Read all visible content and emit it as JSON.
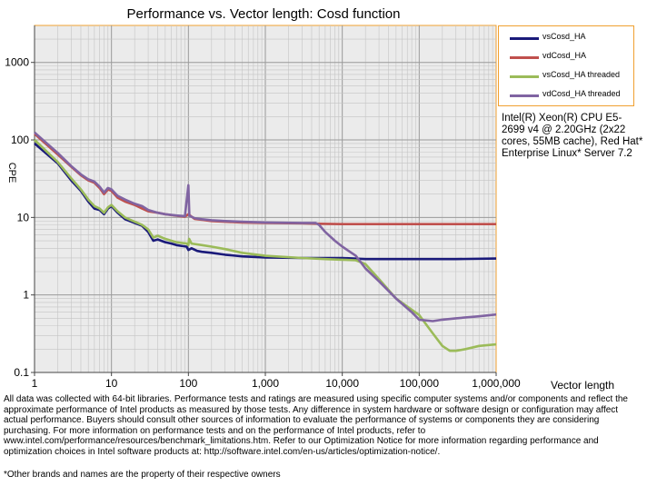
{
  "chart_data": {
    "type": "line",
    "title": "Performance vs. Vector length: Cosd function",
    "xlabel": "Vector length",
    "ylabel": "CPE",
    "xscale": "log",
    "yscale": "log",
    "xlim": [
      1,
      1000000
    ],
    "ylim": [
      0.1,
      3000
    ],
    "x_ticks": [
      1,
      10,
      100,
      1000,
      10000,
      100000,
      1000000
    ],
    "x_tick_labels": [
      "1",
      "10",
      "100",
      "1,000",
      "10,000",
      "100,000",
      "1,000,000"
    ],
    "y_ticks": [
      0.1,
      1,
      10,
      100,
      1000
    ],
    "y_tick_labels": [
      "0.1",
      "1",
      "10",
      "100",
      "1000"
    ],
    "grid": true,
    "legend_position": "right",
    "series": [
      {
        "name": "vsCosd_HA",
        "color": "#1a1a7a",
        "points": [
          [
            1,
            90
          ],
          [
            2,
            50
          ],
          [
            3,
            30
          ],
          [
            4,
            22
          ],
          [
            5,
            16
          ],
          [
            6,
            13
          ],
          [
            7,
            12.5
          ],
          [
            8,
            11
          ],
          [
            9,
            13
          ],
          [
            10,
            14
          ],
          [
            12,
            11.5
          ],
          [
            15,
            9.5
          ],
          [
            20,
            8.5
          ],
          [
            25,
            7.8
          ],
          [
            30,
            6.5
          ],
          [
            35,
            5
          ],
          [
            40,
            5.2
          ],
          [
            50,
            4.8
          ],
          [
            60,
            4.6
          ],
          [
            70,
            4.4
          ],
          [
            80,
            4.3
          ],
          [
            95,
            4.2
          ],
          [
            100,
            3.8
          ],
          [
            110,
            4.0
          ],
          [
            130,
            3.7
          ],
          [
            150,
            3.6
          ],
          [
            200,
            3.5
          ],
          [
            300,
            3.3
          ],
          [
            500,
            3.15
          ],
          [
            1000,
            3.05
          ],
          [
            3000,
            3.0
          ],
          [
            6000,
            3.0
          ],
          [
            10000,
            3.0
          ],
          [
            20000,
            2.9
          ],
          [
            50000,
            2.9
          ],
          [
            100000,
            2.9
          ],
          [
            300000,
            2.9
          ],
          [
            1000000,
            2.95
          ]
        ]
      },
      {
        "name": "vdCosd_HA",
        "color": "#c0504d",
        "points": [
          [
            1,
            120
          ],
          [
            2,
            65
          ],
          [
            3,
            45
          ],
          [
            4,
            35
          ],
          [
            5,
            30
          ],
          [
            6,
            28
          ],
          [
            7,
            24
          ],
          [
            8,
            20
          ],
          [
            9,
            23
          ],
          [
            10,
            22
          ],
          [
            12,
            18
          ],
          [
            15,
            16
          ],
          [
            20,
            14.5
          ],
          [
            25,
            13
          ],
          [
            30,
            12
          ],
          [
            40,
            11.5
          ],
          [
            50,
            11
          ],
          [
            70,
            10.5
          ],
          [
            90,
            10.2
          ],
          [
            100,
            11
          ],
          [
            120,
            9.6
          ],
          [
            150,
            9.3
          ],
          [
            200,
            9.0
          ],
          [
            300,
            8.8
          ],
          [
            500,
            8.6
          ],
          [
            1000,
            8.5
          ],
          [
            3000,
            8.4
          ],
          [
            5000,
            8.3
          ],
          [
            10000,
            8.2
          ],
          [
            30000,
            8.2
          ],
          [
            100000,
            8.2
          ],
          [
            300000,
            8.2
          ],
          [
            1000000,
            8.2
          ]
        ]
      },
      {
        "name": "vsCosd_HA threaded",
        "color": "#9bbb59",
        "points": [
          [
            1,
            100
          ],
          [
            2,
            52
          ],
          [
            3,
            32
          ],
          [
            4,
            23
          ],
          [
            5,
            17
          ],
          [
            6,
            14
          ],
          [
            7,
            13
          ],
          [
            8,
            11.5
          ],
          [
            9,
            13.5
          ],
          [
            10,
            14.5
          ],
          [
            12,
            12
          ],
          [
            15,
            10
          ],
          [
            20,
            8.8
          ],
          [
            25,
            8
          ],
          [
            30,
            7
          ],
          [
            35,
            5.5
          ],
          [
            40,
            5.8
          ],
          [
            50,
            5.3
          ],
          [
            60,
            5.0
          ],
          [
            70,
            4.8
          ],
          [
            80,
            4.7
          ],
          [
            95,
            4.6
          ],
          [
            100,
            4.4
          ],
          [
            102,
            5.3
          ],
          [
            110,
            4.6
          ],
          [
            150,
            4.4
          ],
          [
            200,
            4.2
          ],
          [
            300,
            3.9
          ],
          [
            500,
            3.5
          ],
          [
            1000,
            3.2
          ],
          [
            3000,
            3.0
          ],
          [
            6000,
            2.9
          ],
          [
            10000,
            2.85
          ],
          [
            15000,
            2.8
          ],
          [
            20000,
            2.5
          ],
          [
            30000,
            1.6
          ],
          [
            50000,
            0.9
          ],
          [
            100000,
            0.55
          ],
          [
            150000,
            0.32
          ],
          [
            200000,
            0.22
          ],
          [
            250000,
            0.19
          ],
          [
            300000,
            0.19
          ],
          [
            400000,
            0.2
          ],
          [
            600000,
            0.22
          ],
          [
            1000000,
            0.23
          ]
        ]
      },
      {
        "name": "vdCosd_HA threaded",
        "color": "#8064a2",
        "points": [
          [
            1,
            125
          ],
          [
            2,
            68
          ],
          [
            3,
            46
          ],
          [
            4,
            36
          ],
          [
            5,
            31
          ],
          [
            6,
            29
          ],
          [
            7,
            25
          ],
          [
            8,
            21
          ],
          [
            9,
            24
          ],
          [
            10,
            23
          ],
          [
            12,
            19
          ],
          [
            15,
            17
          ],
          [
            20,
            15
          ],
          [
            25,
            14
          ],
          [
            30,
            12.5
          ],
          [
            40,
            11.5
          ],
          [
            50,
            11
          ],
          [
            70,
            10.6
          ],
          [
            90,
            10.4
          ],
          [
            100,
            26
          ],
          [
            103,
            10.5
          ],
          [
            120,
            9.8
          ],
          [
            150,
            9.5
          ],
          [
            200,
            9.2
          ],
          [
            300,
            9.0
          ],
          [
            500,
            8.8
          ],
          [
            1000,
            8.6
          ],
          [
            3000,
            8.5
          ],
          [
            4500,
            8.5
          ],
          [
            5000,
            8.0
          ],
          [
            6000,
            6.5
          ],
          [
            8000,
            5.0
          ],
          [
            10000,
            4.2
          ],
          [
            15000,
            3.2
          ],
          [
            20000,
            2.2
          ],
          [
            30000,
            1.5
          ],
          [
            50000,
            0.9
          ],
          [
            80000,
            0.6
          ],
          [
            100000,
            0.48
          ],
          [
            150000,
            0.46
          ],
          [
            200000,
            0.48
          ],
          [
            300000,
            0.5
          ],
          [
            600000,
            0.53
          ],
          [
            1000000,
            0.56
          ]
        ]
      }
    ]
  },
  "cpu_note": "Intel(R) Xeon(R) CPU E5-2699 v4 @ 2.20GHz (2x22 cores, 55MB cache), Red Hat* Enterprise Linux* Server 7.2",
  "disclaimer": "All data was collected with 64-bit libraries. Performance tests and ratings are measured using specific computer systems and/or components and reflect the approximate performance of Intel products as measured by those tests. Any difference in system hardware or software design or configuration may affect actual performance. Buyers should consult other sources of information to evaluate the performance of systems or components they are considering purchasing. For more information on performance tests and on the performance of Intel products, refer to www.intel.com/performance/resources/benchmark_limitations.htm. Refer to our Optimization Notice for more information regarding performance and optimization choices in Intel software products at: http://software.intel.com/en-us/articles/optimization-notice/.",
  "footnote": "*Other brands and names are the property of their respective owners"
}
